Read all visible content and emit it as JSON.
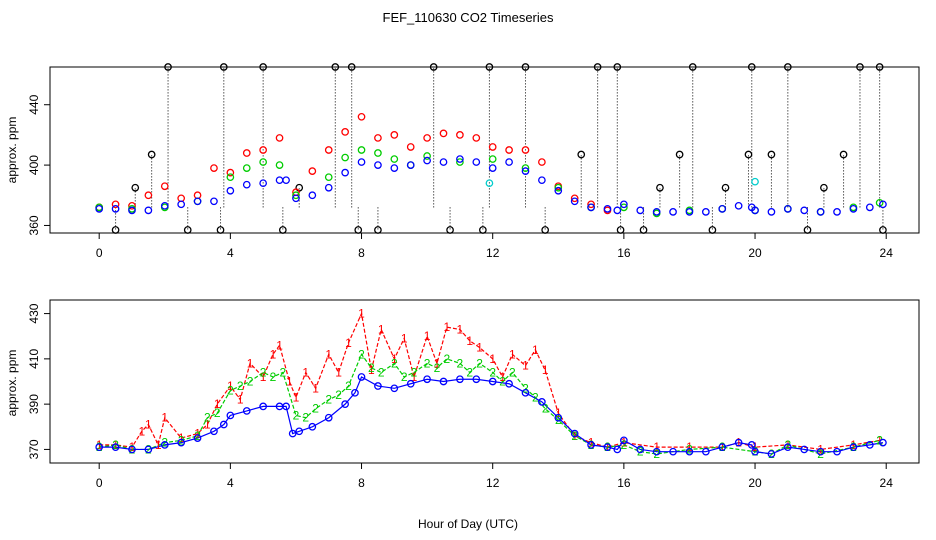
{
  "chart_data": [
    {
      "type": "scatter",
      "title": "FEF_110630  CO2 Timeseries",
      "xlabel": "",
      "ylabel": "approx. ppm",
      "xlim": [
        -1.5,
        25
      ],
      "ylim": [
        355,
        465
      ],
      "xticks": [
        "0",
        "4",
        "8",
        "12",
        "16",
        "20",
        "24"
      ],
      "yticks": [
        "360",
        "400",
        "440"
      ],
      "series": [
        {
          "name": "black",
          "color": "#000000",
          "x": [
            0.5,
            1.1,
            1.6,
            2.1,
            2.7,
            3.7,
            3.8,
            5.0,
            5.6,
            6.1,
            7.2,
            7.7,
            7.9,
            8.5,
            10.2,
            10.7,
            11.7,
            11.9,
            13.0,
            13.6,
            14.7,
            15.2,
            15.8,
            15.9,
            16.6,
            17.1,
            17.7,
            18.1,
            18.7,
            19.1,
            19.8,
            19.9,
            20.5,
            21.0,
            21.6,
            22.1,
            22.7,
            23.2,
            23.8,
            23.9
          ],
          "y": [
            357,
            385,
            407,
            465,
            357,
            357,
            465,
            465,
            357,
            385,
            465,
            465,
            357,
            357,
            465,
            357,
            357,
            465,
            465,
            357,
            407,
            465,
            465,
            357,
            357,
            385,
            407,
            465,
            357,
            385,
            407,
            465,
            407,
            465,
            357,
            385,
            407,
            465,
            465,
            357
          ]
        },
        {
          "name": "red",
          "color": "#ff0000",
          "x": [
            0.0,
            0.5,
            1.0,
            1.5,
            2.0,
            2.5,
            3.0,
            3.5,
            4.0,
            4.5,
            5.0,
            5.5,
            6.0,
            6.5,
            7.0,
            7.5,
            8.0,
            8.5,
            9.0,
            9.5,
            10.0,
            10.5,
            11.0,
            11.5,
            12.0,
            12.5,
            13.0,
            13.5,
            14.0,
            14.5,
            15.0,
            15.5
          ],
          "y": [
            372,
            374,
            373,
            380,
            386,
            378,
            380,
            398,
            395,
            408,
            410,
            418,
            382,
            396,
            410,
            422,
            432,
            418,
            420,
            412,
            418,
            421,
            420,
            418,
            412,
            410,
            410,
            402,
            386,
            378,
            374,
            370
          ]
        },
        {
          "name": "green",
          "color": "#00cc00",
          "x": [
            0.0,
            1.0,
            2.0,
            3.0,
            4.0,
            4.5,
            5.0,
            5.5,
            6.0,
            7.0,
            7.5,
            8.0,
            8.5,
            9.0,
            9.5,
            10.0,
            11.0,
            12.0,
            13.0,
            14.0,
            15.0,
            16.0,
            17.0,
            18.0,
            19.0,
            20.0,
            21.0,
            22.0,
            23.0,
            23.8
          ],
          "y": [
            372,
            371,
            372,
            376,
            392,
            398,
            402,
            400,
            380,
            392,
            405,
            410,
            408,
            404,
            400,
            406,
            402,
            404,
            398,
            385,
            372,
            372,
            368,
            370,
            371,
            370,
            371,
            369,
            372,
            375
          ]
        },
        {
          "name": "cyan",
          "color": "#00cccc",
          "x": [
            11.9,
            20.0
          ],
          "y": [
            388,
            389
          ]
        },
        {
          "name": "blue",
          "color": "#0000ff",
          "x": [
            0.0,
            0.5,
            1.0,
            1.5,
            2.0,
            2.5,
            3.0,
            3.5,
            4.0,
            4.5,
            5.0,
            5.5,
            5.7,
            6.0,
            6.5,
            7.0,
            7.5,
            8.0,
            8.5,
            9.0,
            9.5,
            10.0,
            10.5,
            11.0,
            11.5,
            12.0,
            12.5,
            13.0,
            13.5,
            14.0,
            14.5,
            15.0,
            15.5,
            15.8,
            16.0,
            16.5,
            17.0,
            17.5,
            18.0,
            18.5,
            19.0,
            19.5,
            19.9,
            20.0,
            20.5,
            21.0,
            21.5,
            22.0,
            22.5,
            23.0,
            23.5,
            23.9
          ],
          "y": [
            371,
            371,
            370,
            370,
            373,
            374,
            376,
            376,
            383,
            387,
            388,
            390,
            390,
            378,
            380,
            385,
            395,
            402,
            400,
            398,
            400,
            403,
            402,
            404,
            402,
            398,
            402,
            396,
            390,
            383,
            376,
            372,
            371,
            370,
            374,
            370,
            369,
            369,
            369,
            369,
            371,
            373,
            372,
            370,
            369,
            371,
            370,
            369,
            369,
            371,
            372,
            374
          ]
        }
      ]
    },
    {
      "type": "line",
      "title": "",
      "xlabel": "Hour of Day (UTC)",
      "ylabel": "approx. ppm",
      "xlim": [
        -1.5,
        25
      ],
      "ylim": [
        364,
        436
      ],
      "xticks": [
        "0",
        "4",
        "8",
        "12",
        "16",
        "20",
        "24"
      ],
      "yticks": [
        "370",
        "390",
        "410",
        "430"
      ],
      "series": [
        {
          "name": "1",
          "color": "#ff0000",
          "marker": "1",
          "x": [
            0.0,
            0.5,
            1.0,
            1.3,
            1.5,
            1.8,
            2.0,
            2.5,
            3.0,
            3.3,
            3.6,
            4.0,
            4.3,
            4.6,
            5.0,
            5.3,
            5.5,
            5.8,
            6.0,
            6.3,
            6.6,
            7.0,
            7.3,
            7.6,
            8.0,
            8.3,
            8.6,
            9.0,
            9.3,
            9.6,
            10.0,
            10.3,
            10.6,
            11.0,
            11.3,
            11.6,
            12.0,
            12.3,
            12.6,
            13.0,
            13.3,
            13.6,
            14.0,
            14.5,
            15.0,
            15.5,
            16.0,
            17.0,
            18.0,
            19.0,
            19.5,
            20.0,
            21.0,
            22.0,
            23.0,
            23.8
          ],
          "y": [
            372,
            372,
            371,
            378,
            381,
            372,
            384,
            375,
            377,
            381,
            390,
            398,
            392,
            408,
            402,
            412,
            416,
            400,
            393,
            404,
            397,
            412,
            404,
            417,
            430,
            405,
            423,
            410,
            419,
            402,
            420,
            408,
            424,
            423,
            418,
            415,
            410,
            402,
            412,
            407,
            414,
            405,
            386,
            376,
            373,
            371,
            373,
            371,
            371,
            371,
            373,
            371,
            372,
            370,
            372,
            374
          ]
        },
        {
          "name": "2",
          "color": "#00cc00",
          "marker": "2",
          "x": [
            0.0,
            0.5,
            1.0,
            1.5,
            2.0,
            2.5,
            3.0,
            3.3,
            3.6,
            4.0,
            4.3,
            4.6,
            5.0,
            5.3,
            5.6,
            6.0,
            6.3,
            6.6,
            7.0,
            7.3,
            7.6,
            8.0,
            8.3,
            8.6,
            9.0,
            9.3,
            9.6,
            10.0,
            10.3,
            10.6,
            11.0,
            11.3,
            11.6,
            12.0,
            12.3,
            12.6,
            13.0,
            13.3,
            13.6,
            14.0,
            14.5,
            15.0,
            15.5,
            16.0,
            16.5,
            17.0,
            18.0,
            19.0,
            20.0,
            20.5,
            21.0,
            22.0,
            23.0,
            23.8
          ],
          "y": [
            371,
            372,
            370,
            370,
            373,
            374,
            376,
            384,
            386,
            396,
            398,
            400,
            404,
            402,
            404,
            385,
            384,
            388,
            392,
            394,
            398,
            412,
            406,
            404,
            408,
            402,
            404,
            408,
            406,
            410,
            408,
            404,
            408,
            404,
            400,
            404,
            397,
            393,
            388,
            383,
            376,
            372,
            371,
            372,
            369,
            368,
            370,
            371,
            369,
            368,
            372,
            368,
            371,
            374
          ]
        },
        {
          "name": "3",
          "color": "#0000ff",
          "marker": "o",
          "x": [
            0.0,
            0.5,
            1.0,
            1.5,
            2.0,
            2.5,
            3.0,
            3.5,
            3.8,
            4.0,
            4.5,
            5.0,
            5.5,
            5.7,
            5.9,
            6.1,
            6.5,
            7.0,
            7.5,
            7.8,
            8.0,
            8.5,
            9.0,
            9.5,
            10.0,
            10.5,
            11.0,
            11.5,
            12.0,
            12.5,
            13.0,
            13.5,
            14.0,
            14.5,
            15.0,
            15.5,
            15.8,
            16.0,
            16.5,
            17.0,
            17.5,
            18.0,
            18.5,
            19.0,
            19.5,
            19.9,
            20.0,
            20.5,
            21.0,
            21.5,
            22.0,
            22.5,
            23.0,
            23.5,
            23.9
          ],
          "y": [
            371,
            371,
            370,
            370,
            372,
            373,
            375,
            378,
            381,
            385,
            387,
            389,
            389,
            389,
            377,
            378,
            380,
            384,
            390,
            395,
            402,
            398,
            397,
            399,
            401,
            400,
            401,
            401,
            400,
            399,
            395,
            391,
            384,
            377,
            372,
            371,
            370,
            374,
            370,
            369,
            369,
            369,
            369,
            371,
            373,
            372,
            369,
            368,
            371,
            370,
            369,
            369,
            371,
            372,
            373
          ]
        }
      ]
    }
  ]
}
